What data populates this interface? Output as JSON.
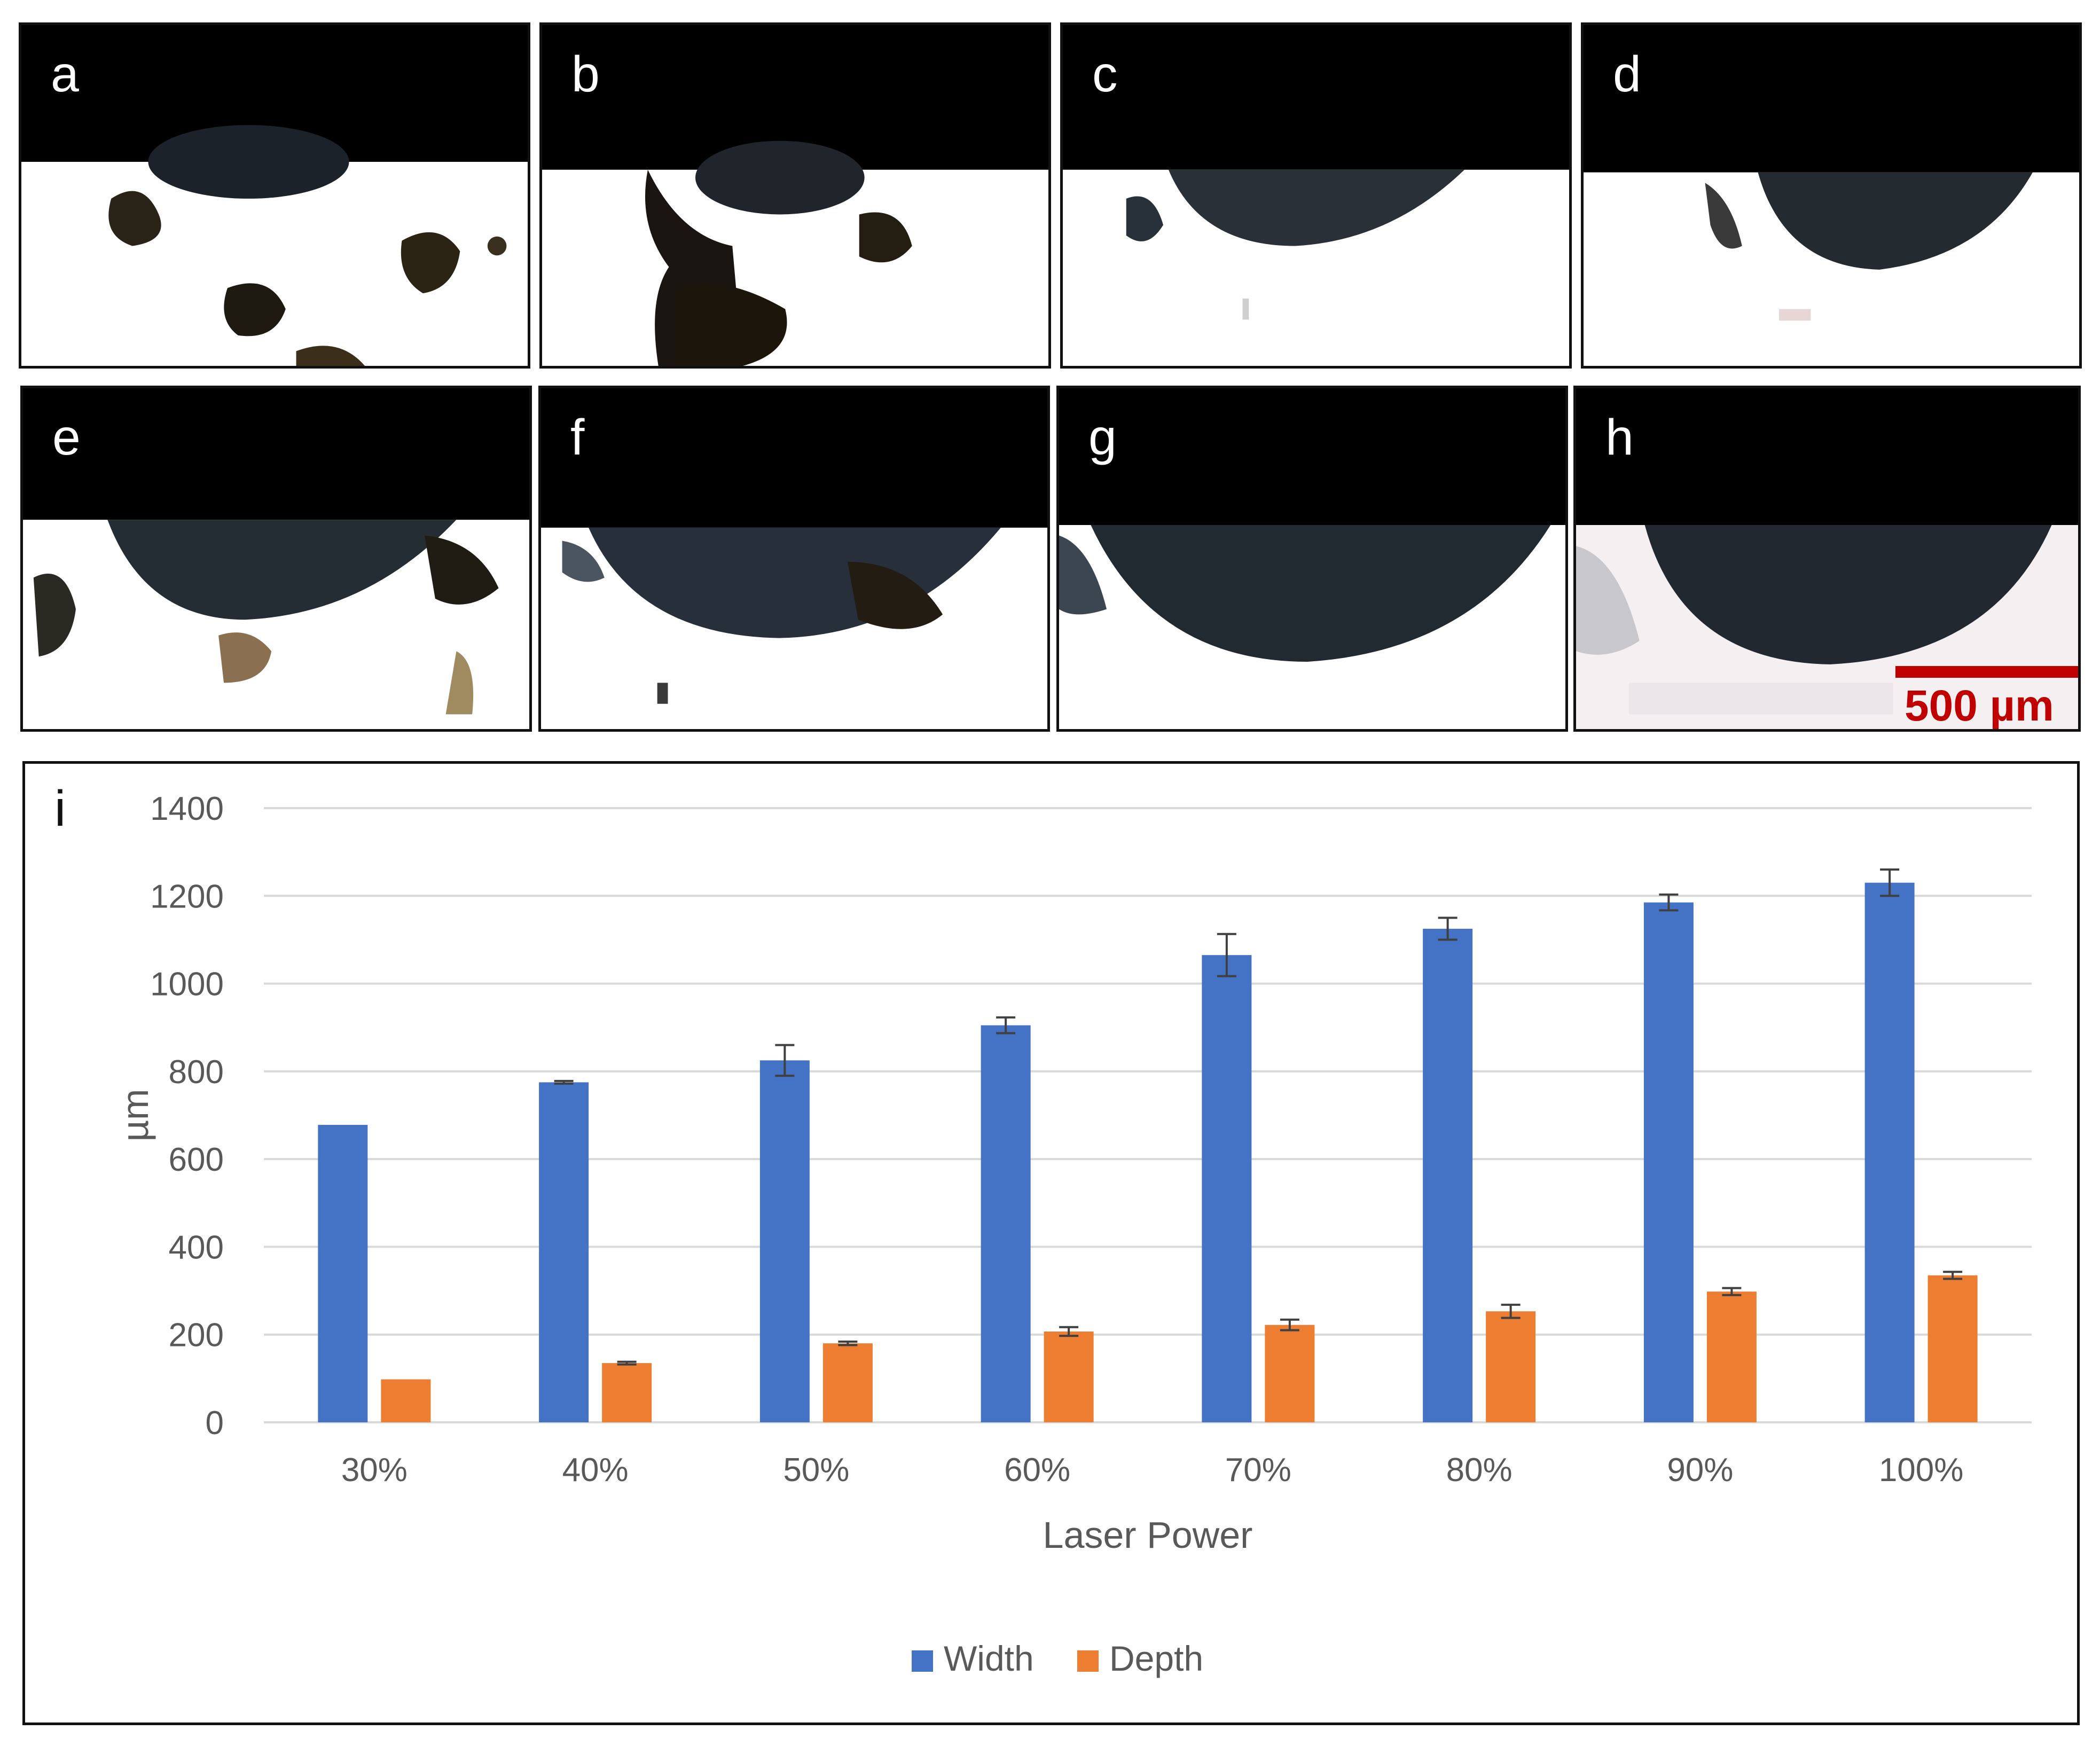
{
  "panels": [
    {
      "label": "a"
    },
    {
      "label": "b"
    },
    {
      "label": "c"
    },
    {
      "label": "d"
    },
    {
      "label": "e"
    },
    {
      "label": "f"
    },
    {
      "label": "g"
    },
    {
      "label": "h"
    }
  ],
  "scale_bar": {
    "label": "500 µm"
  },
  "chart_panel_label": "i",
  "colors": {
    "width": "#4472C4",
    "depth": "#ED7D31",
    "grid": "#D9D9D9",
    "text": "#595959",
    "scale": "#C00000"
  },
  "chart_data": {
    "type": "bar",
    "categories": [
      "30%",
      "40%",
      "50%",
      "60%",
      "70%",
      "80%",
      "90%",
      "100%"
    ],
    "series": [
      {
        "name": "Width",
        "values": [
          678,
          775,
          825,
          905,
          1065,
          1125,
          1185,
          1230
        ],
        "errors": [
          0,
          3,
          35,
          18,
          48,
          25,
          18,
          30
        ]
      },
      {
        "name": "Depth",
        "values": [
          98,
          135,
          180,
          207,
          222,
          253,
          298,
          335
        ],
        "errors": [
          0,
          3,
          4,
          10,
          12,
          15,
          8,
          8
        ]
      }
    ],
    "xlabel": "Laser Power",
    "ylabel": "µm",
    "ylim": [
      0,
      1400
    ],
    "yticks": [
      0,
      200,
      400,
      600,
      800,
      1000,
      1200,
      1400
    ],
    "grid": true,
    "legend": "bottom-center"
  }
}
